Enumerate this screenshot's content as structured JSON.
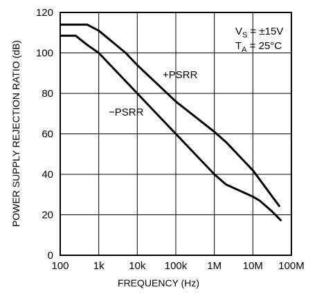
{
  "chart_data": {
    "type": "line",
    "xlabel": "FREQUENCY (Hz)",
    "ylabel": "POWER SUPPLY REJECTION RATIO (dB)",
    "x_scale": "log",
    "xlim": [
      100,
      100000000
    ],
    "ylim": [
      0,
      120
    ],
    "grid": true,
    "x_ticks": [
      {
        "value": 100,
        "label": "100"
      },
      {
        "value": 1000,
        "label": "1k"
      },
      {
        "value": 10000,
        "label": "10k"
      },
      {
        "value": 100000,
        "label": "100k"
      },
      {
        "value": 1000000,
        "label": "1M"
      },
      {
        "value": 10000000,
        "label": "10M"
      },
      {
        "value": 100000000,
        "label": "100M"
      }
    ],
    "y_ticks": [
      {
        "value": 0,
        "label": "0"
      },
      {
        "value": 20,
        "label": "20"
      },
      {
        "value": 40,
        "label": "40"
      },
      {
        "value": 60,
        "label": "60"
      },
      {
        "value": 80,
        "label": "80"
      },
      {
        "value": 100,
        "label": "100"
      },
      {
        "value": 120,
        "label": "120"
      }
    ],
    "series": [
      {
        "name": "+PSRR",
        "points": [
          [
            100,
            114
          ],
          [
            500,
            114
          ],
          [
            1000,
            111
          ],
          [
            5000,
            100
          ],
          [
            10000,
            94
          ],
          [
            100000,
            76
          ],
          [
            1000000,
            61
          ],
          [
            2000000,
            56
          ],
          [
            5000000,
            48
          ],
          [
            10000000,
            42
          ],
          [
            50000000,
            24
          ]
        ]
      },
      {
        "name": "−PSRR",
        "points": [
          [
            100,
            108.5
          ],
          [
            250,
            108.5
          ],
          [
            500,
            104
          ],
          [
            1000,
            100
          ],
          [
            10000,
            80
          ],
          [
            100000,
            60
          ],
          [
            1000000,
            40
          ],
          [
            2000000,
            35
          ],
          [
            10000000,
            29
          ],
          [
            15000000,
            27
          ],
          [
            30000000,
            22
          ],
          [
            55000000,
            17
          ]
        ]
      }
    ],
    "annotations": {
      "vs_main": "V",
      "vs_sub": "S",
      "vs_value": " = ±15V",
      "ta_main": "T",
      "ta_sub": "A",
      "ta_value": " = 25°C"
    },
    "colors": {
      "line": "#000000",
      "grid": "#000000"
    }
  }
}
